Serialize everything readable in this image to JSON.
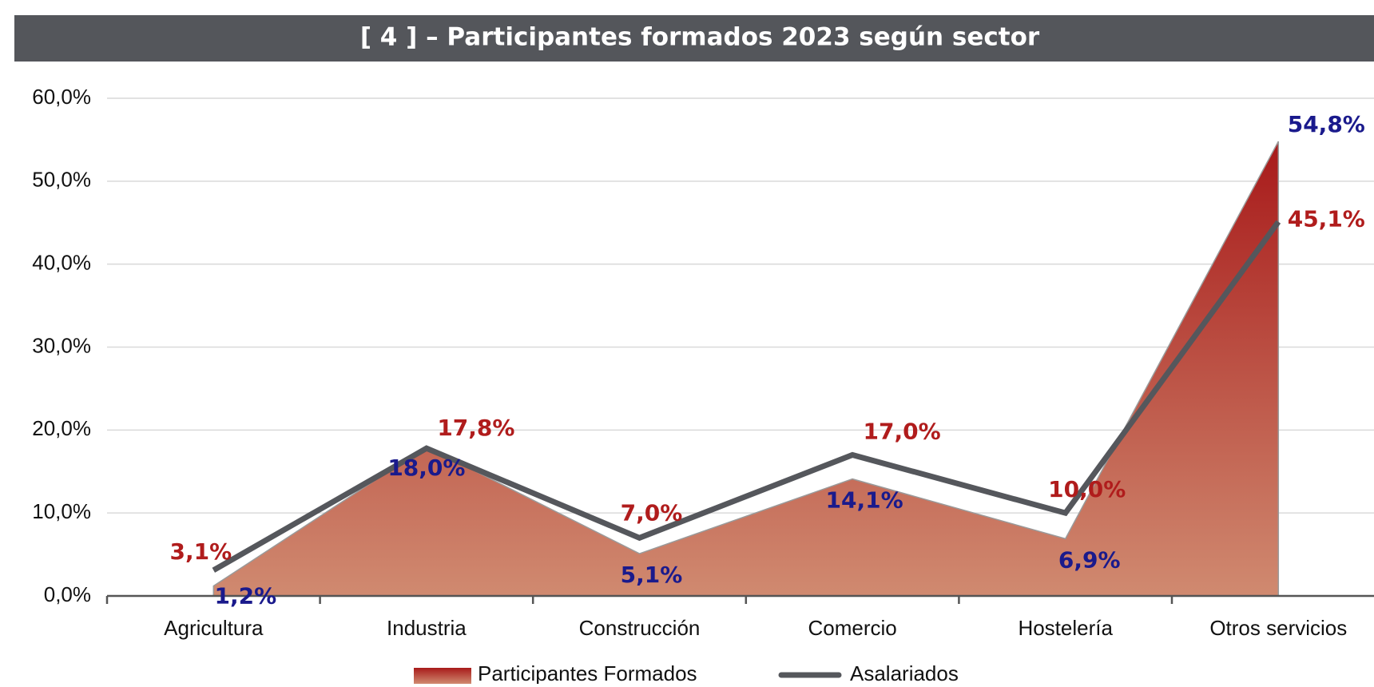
{
  "chart_data": {
    "type": "area-line",
    "title": "[ 4 ] – Participantes formados 2023 según sector",
    "categories": [
      "Agricultura",
      "Industria",
      "Construcción",
      "Comercio",
      "Hostelería",
      "Otros servicios"
    ],
    "series": [
      {
        "name": "Participantes Formados",
        "type": "area",
        "color": "#a81a1a",
        "color_bottom": "#d08a70",
        "label_color": "#1a1a8c",
        "values": [
          1.2,
          18.0,
          5.1,
          14.1,
          6.9,
          54.8
        ],
        "value_labels": [
          "1,2%",
          "18,0%",
          "5,1%",
          "14,1%",
          "6,9%",
          "54,8%"
        ]
      },
      {
        "name": "Asalariados",
        "type": "line",
        "color": "#55575c",
        "label_color": "#b01c1c",
        "values": [
          3.1,
          17.8,
          7.0,
          17.0,
          10.0,
          45.1
        ],
        "value_labels": [
          "3,1%",
          "17,8%",
          "7,0%",
          "17,0%",
          "10,0%",
          "45,1%"
        ]
      }
    ],
    "ylim": [
      0,
      60
    ],
    "yticks": [
      {
        "value": 0,
        "label": "0,0%"
      },
      {
        "value": 10,
        "label": "10,0%"
      },
      {
        "value": 20,
        "label": "20,0%"
      },
      {
        "value": 30,
        "label": "30,0%"
      },
      {
        "value": 40,
        "label": "40,0%"
      },
      {
        "value": 50,
        "label": "50,0%"
      },
      {
        "value": 60,
        "label": "60,0%"
      }
    ],
    "grid": true,
    "legend": "bottom"
  }
}
